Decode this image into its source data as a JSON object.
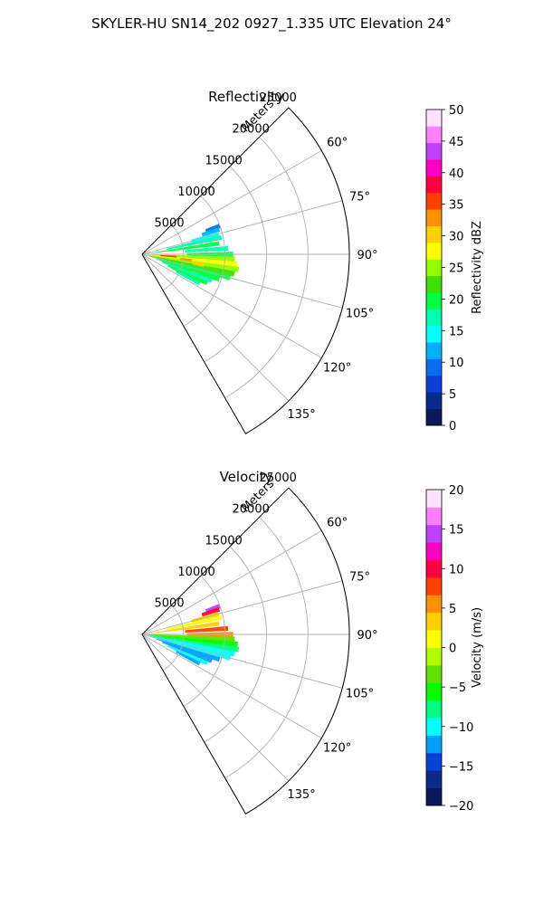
{
  "figure": {
    "title": "SKYLER-HU  SN14_202  0927_1.335 UTC Elevation 24°"
  },
  "chart_data": [
    {
      "type": "heatmap",
      "projection": "polar-sector",
      "title": "Reflectivity",
      "radial_axis_label": "Meters",
      "radial_ticks": [
        5000,
        10000,
        15000,
        20000,
        25000
      ],
      "radial_tick_labels": [
        "5000",
        "10000",
        "15000",
        "20000",
        "25000"
      ],
      "r_range": [
        0,
        25000
      ],
      "azimuth_range_deg": [
        45,
        150
      ],
      "azimuth_ticks_deg": [
        60,
        75,
        90,
        105,
        120,
        135
      ],
      "azimuth_tick_labels": [
        "60°",
        "75°",
        "90°",
        "105°",
        "120°",
        "135°"
      ],
      "grid": true,
      "colorbar": {
        "label": "Reflectivity dBZ",
        "range": [
          0,
          50
        ],
        "ticks": [
          0,
          5,
          10,
          15,
          20,
          25,
          30,
          35,
          40,
          45,
          50
        ],
        "tick_labels": [
          "0",
          "5",
          "10",
          "15",
          "20",
          "25",
          "30",
          "35",
          "40",
          "45",
          "50"
        ],
        "colormap": [
          "#0b1a5c",
          "#0a2b8a",
          "#0b3fd8",
          "#0a6cf0",
          "#00b0ff",
          "#00ffff",
          "#00ffb0",
          "#00ff40",
          "#40e000",
          "#90ff00",
          "#ffff00",
          "#ffd000",
          "#ff9000",
          "#ff4000",
          "#ff0040",
          "#ff00c0",
          "#c040ff",
          "#ff80ff",
          "#ffe0ff"
        ]
      },
      "cells": [
        {
          "az": 70,
          "r": [
            8200,
            10000
          ],
          "value": 9
        },
        {
          "az": 72,
          "r": [
            7600,
            9800
          ],
          "value": 12
        },
        {
          "az": 75,
          "r": [
            6200,
            9600
          ],
          "value": 14
        },
        {
          "az": 78,
          "r": [
            3000,
            9800
          ],
          "value": 16
        },
        {
          "az": 82,
          "r": [
            600,
            9400
          ],
          "value": 19
        },
        {
          "az": 86,
          "r": [
            5200,
            10400
          ],
          "value": 18
        },
        {
          "az": 90,
          "r": [
            5400,
            11000
          ],
          "value": 20
        },
        {
          "az": 93,
          "r": [
            600,
            11200
          ],
          "value": 24
        },
        {
          "az": 96,
          "r": [
            600,
            11600
          ],
          "value": 27
        },
        {
          "az": 99,
          "r": [
            800,
            11800
          ],
          "value": 26
        },
        {
          "az": 102,
          "r": [
            1000,
            11400
          ],
          "value": 23
        },
        {
          "az": 105,
          "r": [
            1200,
            11000
          ],
          "value": 21
        },
        {
          "az": 108,
          "r": [
            1800,
            9800
          ],
          "value": 20
        },
        {
          "az": 111,
          "r": [
            2600,
            9000
          ],
          "value": 18
        },
        {
          "az": 114,
          "r": [
            3400,
            8600
          ],
          "value": 19
        },
        {
          "az": 117,
          "r": [
            4600,
            7800
          ],
          "value": 17
        },
        {
          "az": 94,
          "r": [
            2200,
            4200
          ],
          "value": 36
        },
        {
          "az": 97,
          "r": [
            4600,
            6000
          ],
          "value": 33
        },
        {
          "az": 100,
          "r": [
            6200,
            7600
          ],
          "value": 30
        }
      ]
    },
    {
      "type": "heatmap",
      "projection": "polar-sector",
      "title": "Velocity",
      "radial_axis_label": "Meters",
      "radial_ticks": [
        5000,
        10000,
        15000,
        20000,
        25000
      ],
      "radial_tick_labels": [
        "5000",
        "10000",
        "15000",
        "20000",
        "25000"
      ],
      "r_range": [
        0,
        25000
      ],
      "azimuth_range_deg": [
        45,
        150
      ],
      "azimuth_ticks_deg": [
        60,
        75,
        90,
        105,
        120,
        135
      ],
      "azimuth_tick_labels": [
        "60°",
        "75°",
        "90°",
        "105°",
        "120°",
        "135°"
      ],
      "grid": true,
      "colorbar": {
        "label": "Velocity (m/s)",
        "range": [
          -20,
          20
        ],
        "ticks": [
          -20,
          -15,
          -10,
          -5,
          0,
          5,
          10,
          15,
          20
        ],
        "tick_labels": [
          "−20",
          "−15",
          "−10",
          "−5",
          "0",
          "5",
          "10",
          "15",
          "20"
        ],
        "colormap": [
          "#0b1a5c",
          "#0a2b8a",
          "#0b3fd8",
          "#00a0ff",
          "#00ffff",
          "#00ff80",
          "#00ff00",
          "#60e000",
          "#b0ff00",
          "#ffff00",
          "#ffd000",
          "#ff9000",
          "#ff4000",
          "#ff0040",
          "#ff00c0",
          "#c040ff",
          "#ff80ff",
          "#ffe0ff"
        ]
      },
      "cells": [
        {
          "az": 70,
          "r": [
            8200,
            10000
          ],
          "value": 14
        },
        {
          "az": 72,
          "r": [
            7600,
            9800
          ],
          "value": 10
        },
        {
          "az": 75,
          "r": [
            6200,
            9600
          ],
          "value": 4
        },
        {
          "az": 78,
          "r": [
            3000,
            9800
          ],
          "value": 2
        },
        {
          "az": 82,
          "r": [
            600,
            9400
          ],
          "value": 3
        },
        {
          "az": 86,
          "r": [
            5200,
            10400
          ],
          "value": 8
        },
        {
          "az": 90,
          "r": [
            5400,
            11000
          ],
          "value": 5
        },
        {
          "az": 93,
          "r": [
            600,
            11200
          ],
          "value": -3
        },
        {
          "az": 96,
          "r": [
            600,
            11600
          ],
          "value": -6
        },
        {
          "az": 99,
          "r": [
            800,
            11800
          ],
          "value": -7
        },
        {
          "az": 102,
          "r": [
            1000,
            11400
          ],
          "value": -9
        },
        {
          "az": 105,
          "r": [
            1200,
            11000
          ],
          "value": -11
        },
        {
          "az": 108,
          "r": [
            1800,
            9800
          ],
          "value": -12
        },
        {
          "az": 111,
          "r": [
            2600,
            9000
          ],
          "value": -13
        },
        {
          "az": 114,
          "r": [
            3400,
            8600
          ],
          "value": -10
        },
        {
          "az": 117,
          "r": [
            4600,
            7800
          ],
          "value": -12
        }
      ]
    }
  ]
}
